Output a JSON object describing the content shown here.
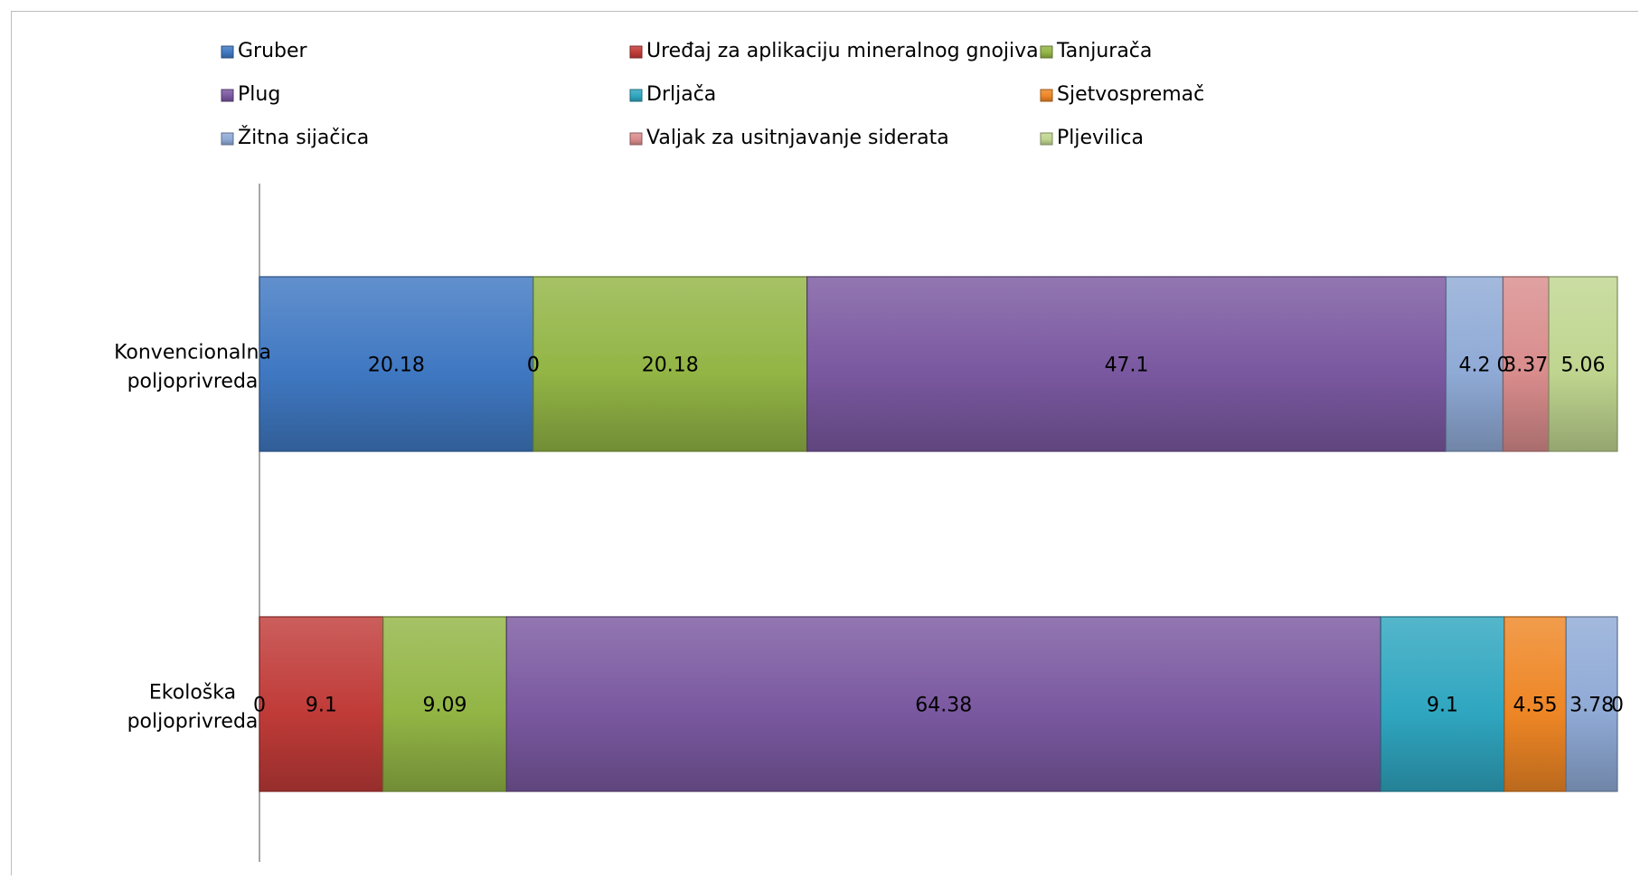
{
  "chart_data": {
    "type": "bar",
    "orientation": "horizontal",
    "stacked": "percent",
    "categories": [
      "Konvencionalna poljoprivreda",
      "Ekološka poljoprivreda"
    ],
    "category_lines": [
      [
        "Konvencionalna",
        "poljoprivreda"
      ],
      [
        "Ekološka",
        "poljoprivreda"
      ]
    ],
    "series": [
      {
        "name": "Gruber",
        "values": [
          20.18,
          0
        ],
        "color": "#3f78c2"
      },
      {
        "name": "Uređaj za aplikaciju mineralnog gnojiva",
        "values": [
          0,
          9.1
        ],
        "color": "#c03b38"
      },
      {
        "name": "Tanjurača",
        "values": [
          20.18,
          9.09
        ],
        "color": "#92b545"
      },
      {
        "name": "Plug",
        "values": [
          47.1,
          64.38
        ],
        "color": "#7a58a0"
      },
      {
        "name": "Drljača",
        "values": [
          0,
          9.1
        ],
        "color": "#2fa6c0"
      },
      {
        "name": "Sjetvospremač",
        "values": [
          0,
          4.55
        ],
        "color": "#ee8625"
      },
      {
        "name": "Žitna sijačica",
        "values": [
          4.2,
          3.78
        ],
        "color": "#8faad6"
      },
      {
        "name": "Valjak za usitnjavanje siderata",
        "values": [
          3.37,
          0
        ],
        "color": "#d98c8c"
      },
      {
        "name": "Pljevilica",
        "values": [
          5.06,
          0
        ],
        "color": "#bfd58f"
      }
    ],
    "labels_shown": [
      [
        "20.18",
        "0",
        "20.18",
        "47.1",
        null,
        null,
        "4.2",
        "3.37",
        "5.06"
      ],
      [
        "0",
        "9.1",
        "9.09",
        "64.38",
        "9.1",
        "4.55",
        "3.78",
        null,
        "0"
      ]
    ],
    "zero_label_after": [
      [
        null,
        "0",
        null,
        null,
        null,
        null,
        "0",
        null,
        null
      ],
      [
        null,
        null,
        null,
        null,
        null,
        null,
        null,
        null,
        null
      ]
    ],
    "legend_position": "top",
    "grid": false,
    "xlabel": "",
    "ylabel": ""
  }
}
